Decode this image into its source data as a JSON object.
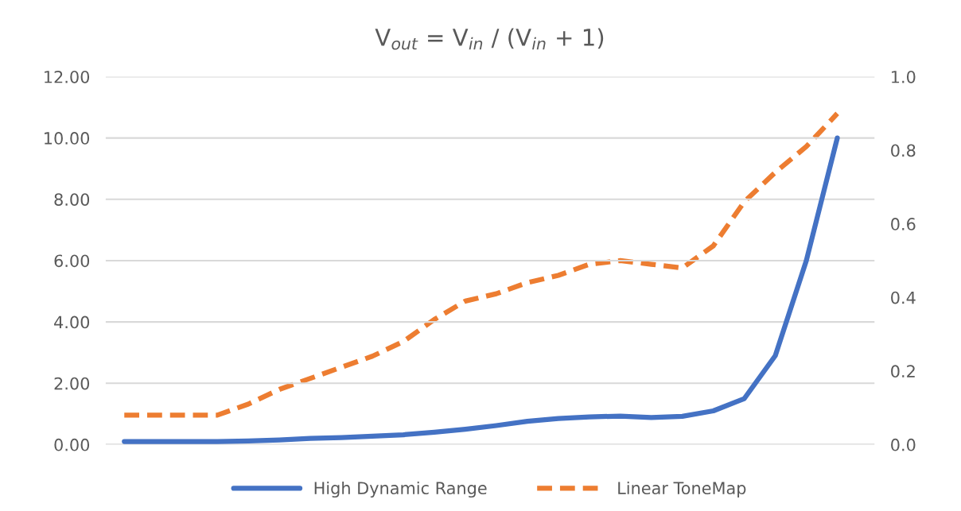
{
  "chart_data": {
    "type": "line",
    "title": "V$_{out}$ = V$_{in}$ / (V$_{in}$ + 1)",
    "categories": [
      null,
      null,
      null,
      null,
      null,
      null,
      null,
      null,
      null,
      null,
      null,
      null,
      null,
      null,
      null,
      null,
      null,
      null,
      null,
      null,
      null,
      null,
      null,
      null
    ],
    "series": [
      {
        "name": "High Dynamic Range",
        "color": "#4472c4",
        "line_style": "solid",
        "values": [
          0.1,
          0.1,
          0.1,
          0.1,
          0.12,
          0.15,
          0.2,
          0.23,
          0.27,
          0.32,
          0.4,
          0.5,
          0.62,
          0.76,
          0.85,
          0.9,
          0.93,
          0.88,
          0.92,
          1.1,
          1.5,
          2.9,
          6.0,
          10.0
        ]
      },
      {
        "name": "Linear ToneMap",
        "color": "#ed7d31",
        "line_style": "dashed",
        "axis": "y2",
        "values": [
          0.08,
          0.08,
          0.08,
          0.08,
          0.11,
          0.15,
          0.18,
          0.21,
          0.24,
          0.28,
          0.34,
          0.39,
          0.41,
          0.44,
          0.46,
          0.49,
          0.5,
          0.49,
          0.48,
          0.54,
          0.66,
          0.74,
          0.81,
          0.9
        ]
      }
    ],
    "ylim": [
      0,
      12
    ],
    "yticks": [
      {
        "value": 0,
        "label": "0.00"
      },
      {
        "value": 2,
        "label": "2.00"
      },
      {
        "value": 4,
        "label": "4.00"
      },
      {
        "value": 6,
        "label": "6.00"
      },
      {
        "value": 8,
        "label": "8.00"
      },
      {
        "value": 10,
        "label": "10.00"
      },
      {
        "value": 12,
        "label": "12.00"
      }
    ],
    "y2lim": [
      0,
      1
    ],
    "y2ticks": [
      {
        "value": 0,
        "label": "0.0"
      },
      {
        "value": 0.2,
        "label": "0.2"
      },
      {
        "value": 0.4,
        "label": "0.4"
      },
      {
        "value": 0.6,
        "label": "0.6"
      },
      {
        "value": 0.8,
        "label": "0.8"
      },
      {
        "value": 1,
        "label": "1.0"
      }
    ],
    "grid": "y",
    "legend": "bottom",
    "marker": "none"
  }
}
